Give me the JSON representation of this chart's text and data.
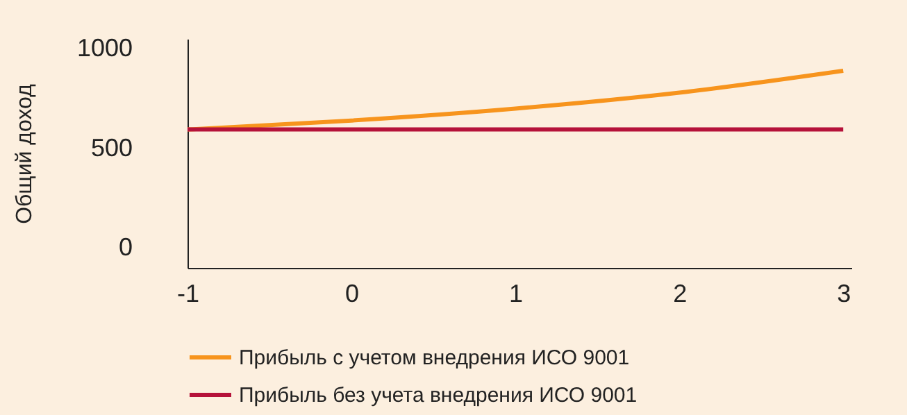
{
  "chart_data": {
    "type": "line",
    "ylabel": "Общий доход",
    "x": [
      -1,
      0,
      1,
      2,
      3
    ],
    "series": [
      {
        "name": "Прибыль с учетом внедрения ИСО 9001",
        "color": "#f7941d",
        "values": [
          595,
          640,
          700,
          780,
          890
        ]
      },
      {
        "name": "Прибыль без  учета внедрения ИСО 9001",
        "color": "#b5123a",
        "values": [
          595,
          595,
          595,
          595,
          595
        ]
      }
    ],
    "xlim": [
      -1,
      3.05
    ],
    "xticks": [
      -1,
      0,
      1,
      2,
      3
    ],
    "ylim": [
      -100,
      1050
    ],
    "yticks": [
      0,
      500,
      1000
    ],
    "grid": false,
    "legend": "bottom",
    "marker": "none",
    "line_style": "solid"
  }
}
